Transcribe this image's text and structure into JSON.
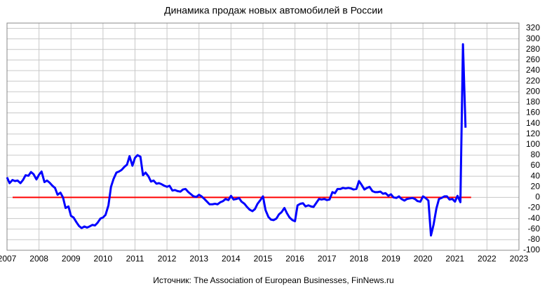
{
  "chart_data": {
    "type": "line",
    "title": "Динамика продаж новых автомобилей в России",
    "source": "Источник: The Association of European Businesses, FinNews.ru",
    "x": [
      2007,
      2007.08,
      2007.17,
      2007.25,
      2007.33,
      2007.42,
      2007.5,
      2007.58,
      2007.67,
      2007.75,
      2007.83,
      2007.92,
      2008,
      2008.08,
      2008.17,
      2008.25,
      2008.33,
      2008.42,
      2008.5,
      2008.58,
      2008.67,
      2008.75,
      2008.83,
      2008.92,
      2009,
      2009.08,
      2009.17,
      2009.25,
      2009.33,
      2009.42,
      2009.5,
      2009.58,
      2009.67,
      2009.75,
      2009.83,
      2009.92,
      2010,
      2010.08,
      2010.17,
      2010.25,
      2010.33,
      2010.42,
      2010.5,
      2010.58,
      2010.67,
      2010.75,
      2010.83,
      2010.92,
      2011,
      2011.08,
      2011.17,
      2011.25,
      2011.33,
      2011.42,
      2011.5,
      2011.58,
      2011.67,
      2011.75,
      2011.83,
      2011.92,
      2012,
      2012.08,
      2012.17,
      2012.25,
      2012.33,
      2012.42,
      2012.5,
      2012.58,
      2012.67,
      2012.75,
      2012.83,
      2012.92,
      2013,
      2013.08,
      2013.17,
      2013.25,
      2013.33,
      2013.42,
      2013.5,
      2013.58,
      2013.67,
      2013.75,
      2013.83,
      2013.92,
      2014,
      2014.08,
      2014.17,
      2014.25,
      2014.33,
      2014.42,
      2014.5,
      2014.58,
      2014.67,
      2014.75,
      2014.83,
      2014.92,
      2015,
      2015.08,
      2015.17,
      2015.25,
      2015.33,
      2015.42,
      2015.5,
      2015.58,
      2015.67,
      2015.75,
      2015.83,
      2015.92,
      2016,
      2016.08,
      2016.17,
      2016.25,
      2016.33,
      2016.42,
      2016.5,
      2016.58,
      2016.67,
      2016.75,
      2016.83,
      2016.92,
      2017,
      2017.08,
      2017.17,
      2017.25,
      2017.33,
      2017.42,
      2017.5,
      2017.58,
      2017.67,
      2017.75,
      2017.83,
      2017.92,
      2018,
      2018.08,
      2018.17,
      2018.25,
      2018.33,
      2018.42,
      2018.5,
      2018.58,
      2018.67,
      2018.75,
      2018.83,
      2018.92,
      2019,
      2019.08,
      2019.17,
      2019.25,
      2019.33,
      2019.42,
      2019.5,
      2019.58,
      2019.67,
      2019.75,
      2019.83,
      2019.92,
      2020,
      2020.08,
      2020.17,
      2020.25,
      2020.33,
      2020.42,
      2020.5,
      2020.58,
      2020.67,
      2020.75,
      2020.83,
      2020.92,
      2021,
      2021.08,
      2021.17,
      2021.25,
      2021.33
    ],
    "series": [
      {
        "color": "#0000ff",
        "values": [
          38,
          27,
          33,
          31,
          32,
          27,
          33,
          42,
          41,
          48,
          44,
          34,
          43,
          49,
          29,
          32,
          28,
          22,
          18,
          5,
          9,
          0,
          -20,
          -17,
          -35,
          -38,
          -47,
          -54,
          -58,
          -55,
          -57,
          -55,
          -52,
          -53,
          -48,
          -40,
          -38,
          -33,
          -15,
          20,
          35,
          47,
          49,
          52,
          58,
          62,
          78,
          60,
          75,
          80,
          77,
          42,
          47,
          40,
          30,
          32,
          26,
          27,
          25,
          22,
          20,
          22,
          13,
          14,
          12,
          11,
          15,
          16,
          10,
          6,
          2,
          1,
          5,
          2,
          -3,
          -8,
          -13,
          -13,
          -12,
          -13,
          -9,
          -7,
          -3,
          -5,
          3,
          -4,
          -3,
          -1,
          -8,
          -12,
          -18,
          -23,
          -26,
          -22,
          -12,
          -5,
          2,
          -24,
          -37,
          -42,
          -43,
          -40,
          -32,
          -28,
          -20,
          -30,
          -38,
          -43,
          -45,
          -15,
          -12,
          -11,
          -17,
          -15,
          -17,
          -18,
          -10,
          -3,
          -4,
          -3,
          -5,
          -4,
          10,
          8,
          16,
          16,
          18,
          17,
          18,
          17,
          15,
          16,
          31,
          24,
          15,
          18,
          20,
          12,
          10,
          10,
          11,
          7,
          8,
          3,
          6,
          0,
          -1,
          2,
          -3,
          -6,
          -3,
          -2,
          -1,
          -3,
          -7,
          -8,
          2,
          -1,
          -6,
          -72,
          -52,
          -21,
          -3,
          -1,
          2,
          2,
          -4,
          -3,
          -8,
          3,
          -9,
          290,
          132
        ]
      }
    ],
    "reference_line": {
      "value": 0,
      "color": "#ff0000"
    },
    "xlim": [
      2007,
      2023
    ],
    "xticks": [
      2007,
      2008,
      2009,
      2010,
      2011,
      2012,
      2013,
      2014,
      2015,
      2016,
      2017,
      2018,
      2019,
      2020,
      2021,
      2022,
      2023
    ],
    "ylim": [
      -100,
      330
    ],
    "yticks": [
      -100,
      -80,
      -60,
      -40,
      -20,
      0,
      20,
      40,
      60,
      80,
      100,
      120,
      140,
      160,
      180,
      200,
      220,
      240,
      260,
      280,
      300,
      320
    ],
    "grid": true
  }
}
